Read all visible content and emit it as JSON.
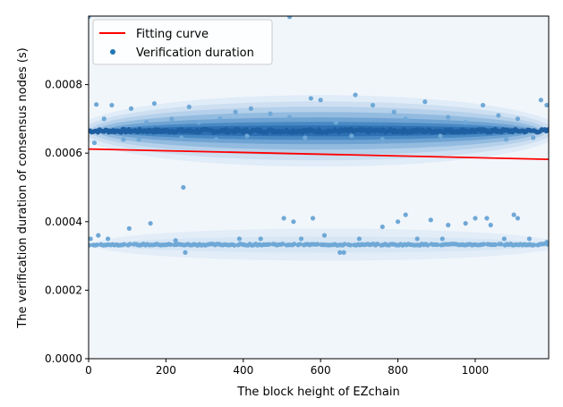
{
  "chart_data": {
    "type": "scatter",
    "xlabel": "The block height of EZchain",
    "ylabel": "The verification duration of consensus nodes (s)",
    "xlim": [
      0,
      1190
    ],
    "ylim": [
      0,
      0.001
    ],
    "x_ticks": [
      0,
      200,
      400,
      600,
      800,
      1000
    ],
    "y_ticks": [
      0.0,
      0.0002,
      0.0004,
      0.0006,
      0.0008
    ],
    "y_tick_labels": [
      "0.0000",
      "0.0002",
      "0.0004",
      "0.0006",
      "0.0008"
    ],
    "legend": {
      "position": "top-left",
      "entries": [
        {
          "label": "Fitting curve",
          "kind": "line",
          "color": "#ff0000"
        },
        {
          "label": "Verification duration",
          "kind": "dot",
          "color": "#1f77b4"
        }
      ]
    },
    "fitting_curve": {
      "x": [
        0,
        1190
      ],
      "y": [
        0.000612,
        0.000582
      ],
      "color": "#ff0000"
    },
    "clusters": [
      {
        "name": "upper",
        "center": 0.000665,
        "band": 1e-05,
        "outliers": [
          [
            20,
            0.000742
          ],
          [
            40,
            0.0007
          ],
          [
            60,
            0.00074
          ],
          [
            110,
            0.00073
          ],
          [
            150,
            0.00069
          ],
          [
            170,
            0.000745
          ],
          [
            215,
            0.0007
          ],
          [
            260,
            0.000735
          ],
          [
            285,
            0.00069
          ],
          [
            340,
            0.0007
          ],
          [
            380,
            0.00072
          ],
          [
            420,
            0.00073
          ],
          [
            470,
            0.000715
          ],
          [
            520,
            0.000705
          ],
          [
            575,
            0.00076
          ],
          [
            600,
            0.000755
          ],
          [
            640,
            0.00069
          ],
          [
            690,
            0.00077
          ],
          [
            735,
            0.00074
          ],
          [
            790,
            0.00072
          ],
          [
            820,
            0.0007
          ],
          [
            870,
            0.00075
          ],
          [
            930,
            0.000705
          ],
          [
            975,
            0.00069
          ],
          [
            1020,
            0.00074
          ],
          [
            1060,
            0.00071
          ],
          [
            1110,
            0.0007
          ],
          [
            1170,
            0.000755
          ],
          [
            1185,
            0.00074
          ],
          [
            15,
            0.00063
          ],
          [
            90,
            0.00064
          ],
          [
            130,
            0.00064
          ],
          [
            240,
            0.000645
          ],
          [
            330,
            0.00064
          ],
          [
            410,
            0.00065
          ],
          [
            560,
            0.000645
          ],
          [
            680,
            0.00065
          ],
          [
            760,
            0.00064
          ],
          [
            910,
            0.00065
          ],
          [
            1080,
            0.00064
          ],
          [
            1150,
            0.000645
          ]
        ]
      },
      {
        "name": "lower",
        "center": 0.000333,
        "band": 4e-06,
        "outliers": [
          [
            5,
            0.00035
          ],
          [
            25,
            0.00036
          ],
          [
            50,
            0.00035
          ],
          [
            105,
            0.00038
          ],
          [
            160,
            0.000395
          ],
          [
            225,
            0.000345
          ],
          [
            390,
            0.00035
          ],
          [
            445,
            0.00035
          ],
          [
            505,
            0.00041
          ],
          [
            530,
            0.0004
          ],
          [
            550,
            0.00035
          ],
          [
            580,
            0.00041
          ],
          [
            610,
            0.00036
          ],
          [
            650,
            0.00031
          ],
          [
            660,
            0.00031
          ],
          [
            700,
            0.00035
          ],
          [
            760,
            0.000385
          ],
          [
            800,
            0.0004
          ],
          [
            820,
            0.00042
          ],
          [
            850,
            0.00035
          ],
          [
            885,
            0.000405
          ],
          [
            915,
            0.00035
          ],
          [
            930,
            0.00039
          ],
          [
            975,
            0.000395
          ],
          [
            1000,
            0.00041
          ],
          [
            1030,
            0.00041
          ],
          [
            1040,
            0.00039
          ],
          [
            1075,
            0.00035
          ],
          [
            1100,
            0.00042
          ],
          [
            1110,
            0.00041
          ],
          [
            1140,
            0.00035
          ],
          [
            1185,
            0.00034
          ],
          [
            250,
            0.00031
          ]
        ]
      }
    ],
    "isolated_points": [
      [
        245,
        0.0005
      ],
      [
        0,
        0.000998
      ],
      [
        520,
        0.000998
      ]
    ],
    "colors": {
      "kde_base": "#f1f6fb",
      "dots": "#6fa8d6",
      "dots_dense": "#1e5fa1",
      "fit": "#ff0000"
    }
  }
}
